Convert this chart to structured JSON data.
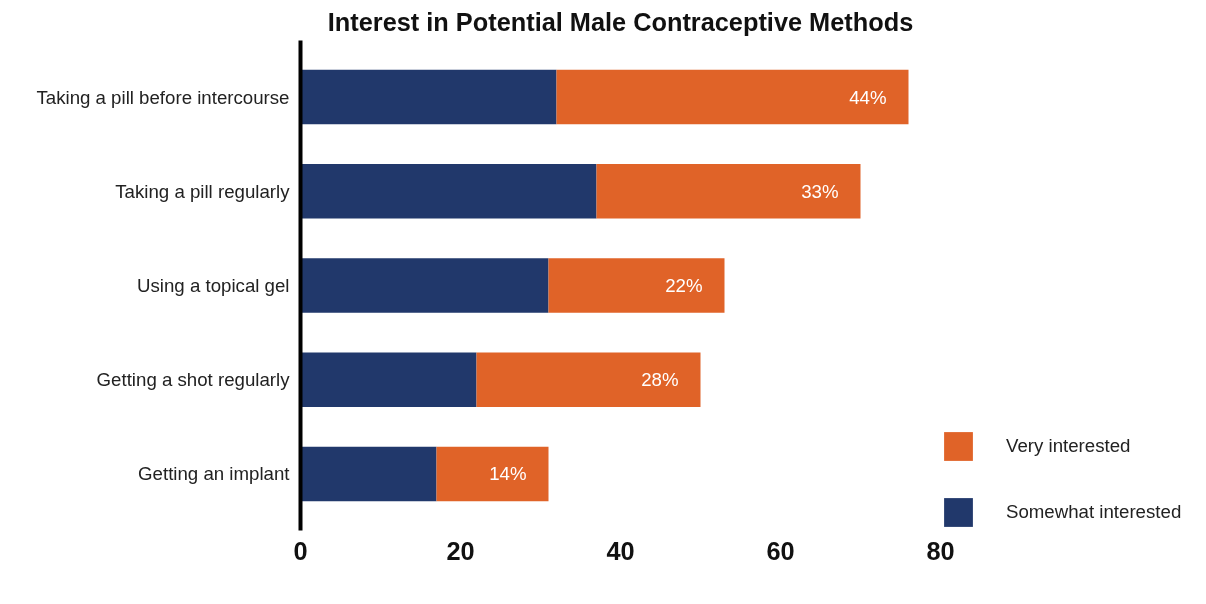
{
  "chart_data": {
    "type": "bar",
    "orientation": "horizontal",
    "stacked": true,
    "title": "Interest in Potential Male Contraceptive Methods",
    "categories": [
      "Taking a pill before intercourse",
      "Taking a pill regularly",
      "Using a topical gel",
      "Getting a shot regularly",
      "Getting an implant"
    ],
    "series": [
      {
        "name": "Somewhat interested",
        "color": "#21386b",
        "values": [
          32,
          37,
          31,
          22,
          17
        ]
      },
      {
        "name": "Very interested",
        "color": "#e06328",
        "values": [
          44,
          33,
          22,
          28,
          14
        ],
        "value_labels": [
          "44%",
          "33%",
          "22%",
          "28%",
          "14%"
        ]
      }
    ],
    "xlim": [
      0,
      80
    ],
    "xticks": [
      0,
      20,
      40,
      60,
      80
    ],
    "grid": false,
    "legend": "right"
  }
}
